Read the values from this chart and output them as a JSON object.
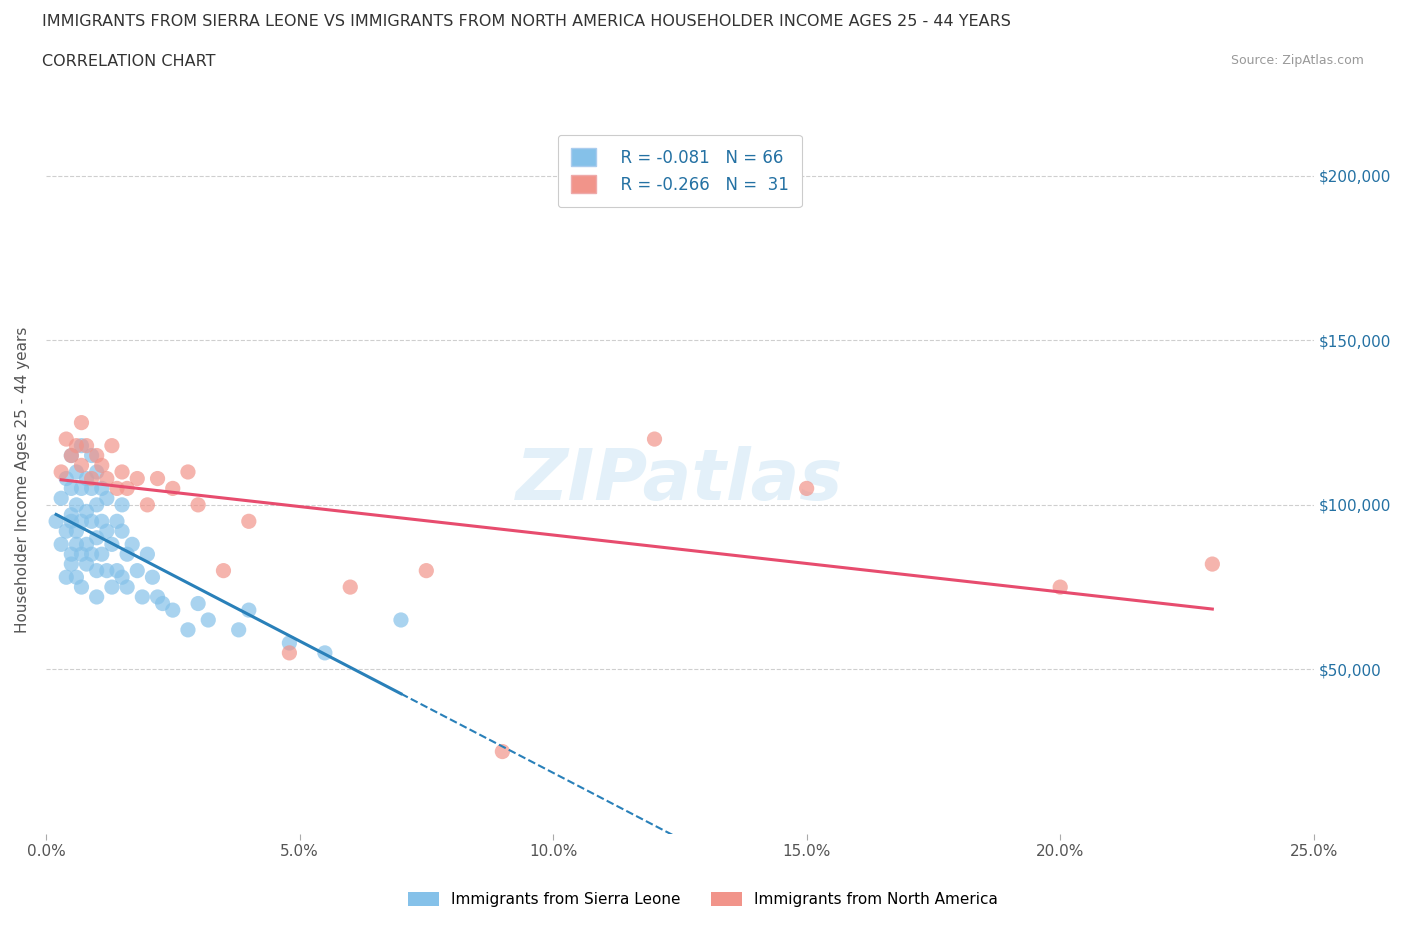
{
  "title_line1": "IMMIGRANTS FROM SIERRA LEONE VS IMMIGRANTS FROM NORTH AMERICA HOUSEHOLDER INCOME AGES 25 - 44 YEARS",
  "title_line2": "CORRELATION CHART",
  "source_text": "Source: ZipAtlas.com",
  "ylabel": "Householder Income Ages 25 - 44 years",
  "xlim": [
    0.0,
    0.25
  ],
  "ylim": [
    0,
    215000
  ],
  "xtick_labels": [
    "0.0%",
    "5.0%",
    "10.0%",
    "15.0%",
    "20.0%",
    "25.0%"
  ],
  "xtick_vals": [
    0.0,
    0.05,
    0.1,
    0.15,
    0.2,
    0.25
  ],
  "ytick_vals": [
    50000,
    100000,
    150000,
    200000
  ],
  "ytick_labels": [
    "$50,000",
    "$100,000",
    "$150,000",
    "$200,000"
  ],
  "watermark": "ZIPatlas",
  "legend_R1": "R = -0.081",
  "legend_N1": "N = 66",
  "legend_R2": "R = -0.266",
  "legend_N2": "N =  31",
  "color_blue": "#85c1e9",
  "color_pink": "#f1948a",
  "color_blue_line": "#2980b9",
  "color_pink_line": "#e74c6e",
  "color_tick_right": "#2471a3",
  "sierra_leone_x": [
    0.002,
    0.003,
    0.003,
    0.004,
    0.004,
    0.004,
    0.005,
    0.005,
    0.005,
    0.005,
    0.005,
    0.005,
    0.006,
    0.006,
    0.006,
    0.006,
    0.006,
    0.007,
    0.007,
    0.007,
    0.007,
    0.007,
    0.008,
    0.008,
    0.008,
    0.008,
    0.009,
    0.009,
    0.009,
    0.009,
    0.01,
    0.01,
    0.01,
    0.01,
    0.01,
    0.011,
    0.011,
    0.011,
    0.012,
    0.012,
    0.012,
    0.013,
    0.013,
    0.014,
    0.014,
    0.015,
    0.015,
    0.015,
    0.016,
    0.016,
    0.017,
    0.018,
    0.019,
    0.02,
    0.021,
    0.022,
    0.023,
    0.025,
    0.028,
    0.03,
    0.032,
    0.038,
    0.04,
    0.048,
    0.055,
    0.07
  ],
  "sierra_leone_y": [
    95000,
    88000,
    102000,
    78000,
    92000,
    108000,
    85000,
    95000,
    105000,
    115000,
    82000,
    97000,
    88000,
    100000,
    110000,
    78000,
    92000,
    85000,
    95000,
    105000,
    118000,
    75000,
    88000,
    98000,
    108000,
    82000,
    85000,
    95000,
    105000,
    115000,
    80000,
    90000,
    100000,
    110000,
    72000,
    85000,
    95000,
    105000,
    80000,
    92000,
    102000,
    75000,
    88000,
    80000,
    95000,
    78000,
    92000,
    100000,
    85000,
    75000,
    88000,
    80000,
    72000,
    85000,
    78000,
    72000,
    70000,
    68000,
    62000,
    70000,
    65000,
    62000,
    68000,
    58000,
    55000,
    65000
  ],
  "north_america_x": [
    0.003,
    0.004,
    0.005,
    0.006,
    0.007,
    0.007,
    0.008,
    0.009,
    0.01,
    0.011,
    0.012,
    0.013,
    0.014,
    0.015,
    0.016,
    0.018,
    0.02,
    0.022,
    0.025,
    0.028,
    0.03,
    0.035,
    0.04,
    0.048,
    0.06,
    0.075,
    0.09,
    0.12,
    0.15,
    0.2,
    0.23
  ],
  "north_america_y": [
    110000,
    120000,
    115000,
    118000,
    125000,
    112000,
    118000,
    108000,
    115000,
    112000,
    108000,
    118000,
    105000,
    110000,
    105000,
    108000,
    100000,
    108000,
    105000,
    110000,
    100000,
    80000,
    95000,
    55000,
    75000,
    80000,
    25000,
    120000,
    105000,
    75000,
    82000
  ]
}
